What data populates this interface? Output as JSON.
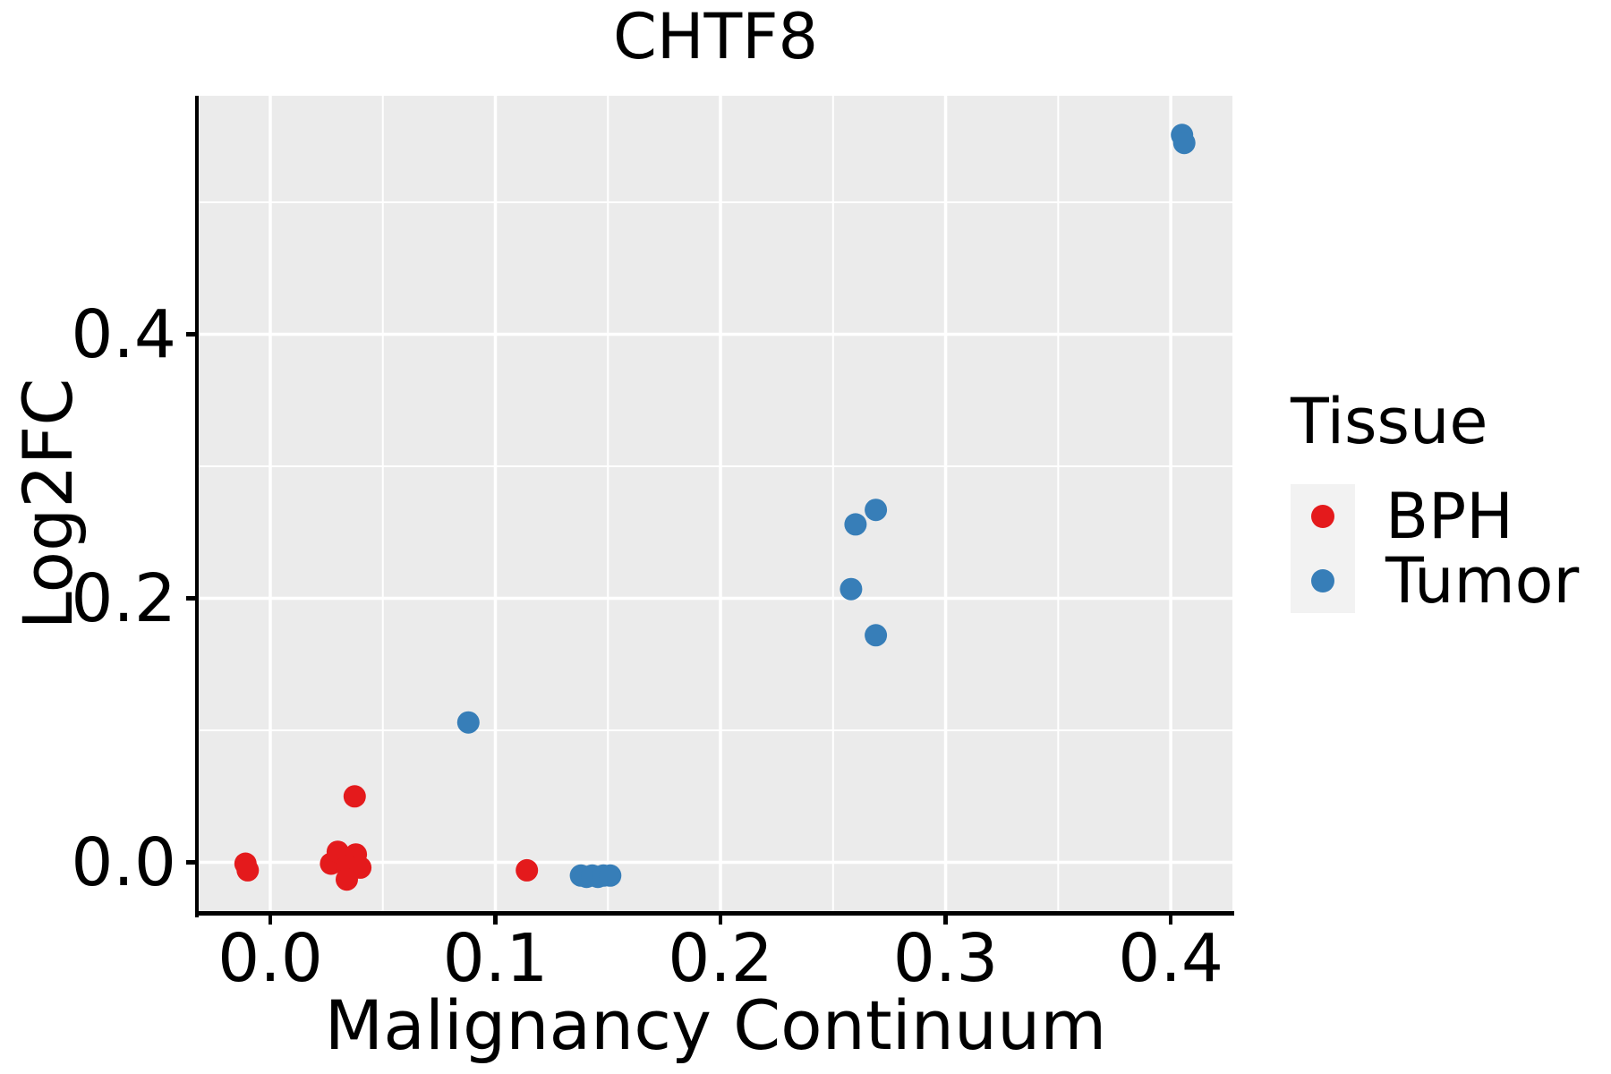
{
  "chart_data": {
    "type": "scatter",
    "title": "CHTF8",
    "xlabel": "Malignancy Continuum",
    "ylabel": "Log2FC",
    "xlim": [
      -0.0318,
      0.4274
    ],
    "ylim": [
      -0.0383,
      0.5807
    ],
    "x_ticks": [
      {
        "value": 0.0,
        "label": "0.0"
      },
      {
        "value": 0.1,
        "label": "0.1"
      },
      {
        "value": 0.2,
        "label": "0.2"
      },
      {
        "value": 0.3,
        "label": "0.3"
      },
      {
        "value": 0.4,
        "label": "0.4"
      }
    ],
    "x_minor_ticks": [
      0.05,
      0.15,
      0.25,
      0.35
    ],
    "y_ticks": [
      {
        "value": 0.0,
        "label": "0.0"
      },
      {
        "value": 0.2,
        "label": "0.2"
      },
      {
        "value": 0.4,
        "label": "0.4"
      }
    ],
    "y_minor_ticks": [
      0.1,
      0.3,
      0.5
    ],
    "grid": {
      "on": true,
      "major_color": "#ffffff",
      "minor_color": "#ffffff"
    },
    "panel_bg": "#ebebeb",
    "legend": {
      "title": "Tissue",
      "position": "right",
      "key_bg": "#f2f2f2"
    },
    "series": [
      {
        "name": "BPH",
        "color": "#e41a1c",
        "points": [
          [
            -0.011,
            -0.001
          ],
          [
            -0.01,
            -0.006
          ],
          [
            0.0375,
            0.05
          ],
          [
            0.027,
            -0.001
          ],
          [
            0.03,
            0.008
          ],
          [
            0.038,
            0.006
          ],
          [
            0.034,
            -0.003
          ],
          [
            0.04,
            -0.004
          ],
          [
            0.034,
            -0.013
          ],
          [
            0.114,
            -0.006
          ]
        ]
      },
      {
        "name": "Tumor",
        "color": "#377eb8",
        "points": [
          [
            0.088,
            0.106
          ],
          [
            0.138,
            -0.01
          ],
          [
            0.1405,
            -0.011
          ],
          [
            0.143,
            -0.01
          ],
          [
            0.1455,
            -0.011
          ],
          [
            0.148,
            -0.01
          ],
          [
            0.151,
            -0.01
          ],
          [
            0.258,
            0.207
          ],
          [
            0.26,
            0.256
          ],
          [
            0.269,
            0.267
          ],
          [
            0.269,
            0.172
          ],
          [
            0.405,
            0.551
          ],
          [
            0.406,
            0.545
          ]
        ]
      }
    ]
  }
}
